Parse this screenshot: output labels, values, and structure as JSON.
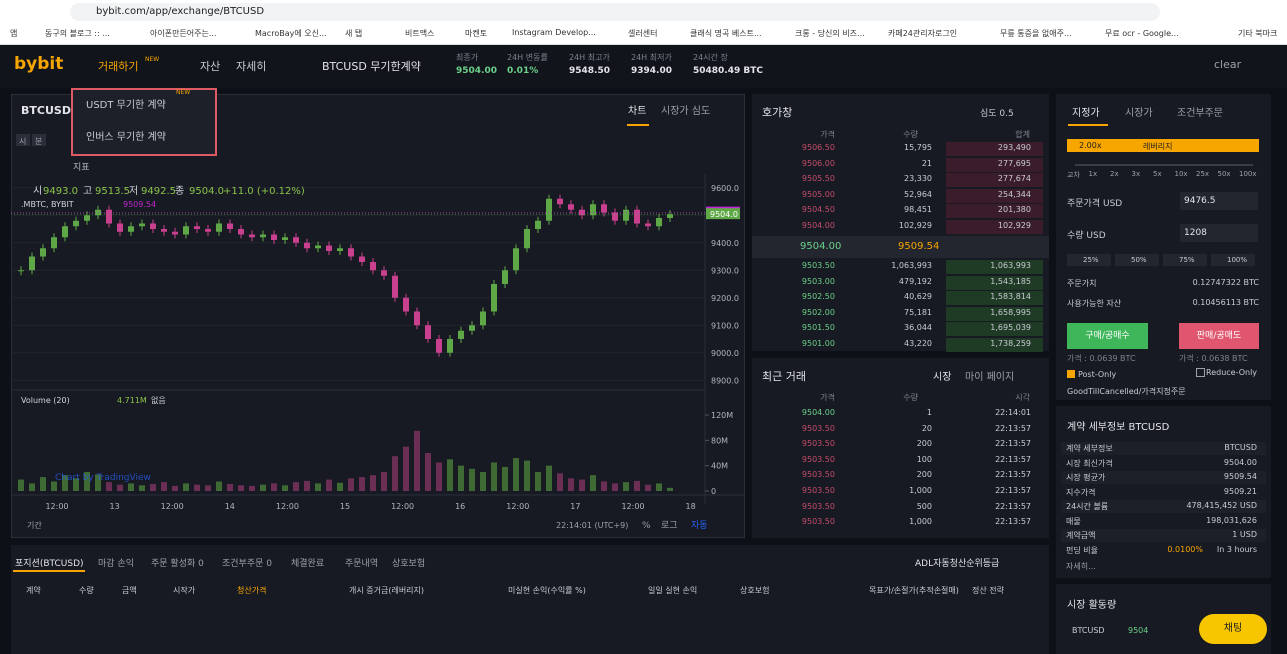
{
  "browser": {
    "url": "bybit.com/app/exchange/BTCUSD",
    "bookmarks": [
      "앱",
      "동구의 블로그 :: ...",
      "아이폰만든어주는...",
      "MacroBay에 오신...",
      "새 탭",
      "비트맥스",
      "마켄토",
      "Instagram Develop...",
      "셀러센터",
      "클래식 명곡 베스트...",
      "크롱 - 당신의 비즈...",
      "카페24관리자로그인",
      "무릎 통증을 없애주...",
      "무료 ocr - Google...",
      "기타 북마크"
    ]
  },
  "nav": {
    "logo": "bybit",
    "menu": [
      "거래하기",
      "자산",
      "자세히"
    ],
    "badge": "NEW",
    "contract": "BTCUSD 무기한계약",
    "user": "clear",
    "stats": [
      {
        "label": "최종가",
        "value": "9504.00"
      },
      {
        "label": "24H 변동률",
        "value": "0.01%"
      },
      {
        "label": "24H 최고가",
        "value": "9548.50"
      },
      {
        "label": "24H 최저가",
        "value": "9394.00"
      },
      {
        "label": "24시간 장",
        "value": "50480.49 BTC"
      }
    ]
  },
  "dropdown": {
    "items": [
      "USDT 무기한 계약",
      "인버스 무기한 계약"
    ],
    "badge": "NEW"
  },
  "chart_panel": {
    "title": "BTCUSD",
    "tabs": [
      "차트",
      "시장가 심도"
    ],
    "intervals": [
      "시",
      "분"
    ],
    "indicator": "지표",
    "ohlc": [
      "시",
      "9493.0",
      "고",
      "9513.5",
      "저",
      "9492.5",
      "종",
      "9504.0",
      "+11.0 (+0.12%)"
    ],
    "index_name": ".MBTC, BYBIT",
    "index_value": "9509.54",
    "volume_name": "Volume (20)",
    "volume_value": "4.711M",
    "volume_extra": "없음",
    "watermark": "Chart by TradingView",
    "period": "기간",
    "clock": "22:14:01 (UTC+9)",
    "options": [
      "%",
      "로그",
      "자동"
    ]
  },
  "chart_data": {
    "type": "candlestick",
    "series": [
      {
        "name": "BTCUSD",
        "up_color": "#5fa847",
        "down_color": "#c9408f",
        "values": [
          9300,
          9350,
          9380,
          9420,
          9460,
          9480,
          9500,
          9520,
          9470,
          9440,
          9460,
          9470,
          9450,
          9440,
          9430,
          9460,
          9450,
          9440,
          9470,
          9450,
          9430,
          9420,
          9430,
          9410,
          9420,
          9400,
          9380,
          9390,
          9370,
          9380,
          9350,
          9330,
          9300,
          9280,
          9200,
          9150,
          9100,
          9050,
          9000,
          9050,
          9080,
          9100,
          9150,
          9250,
          9300,
          9380,
          9450,
          9480,
          9560,
          9540,
          9520,
          9500,
          9540,
          9510,
          9480,
          9520,
          9470,
          9460,
          9490,
          9504
        ]
      },
      {
        "name": "Volume",
        "axis": "y2",
        "up_color": "#3f6a34",
        "down_color": "#6b2f55",
        "values": [
          18,
          12,
          22,
          15,
          25,
          20,
          30,
          26,
          14,
          10,
          12,
          9,
          11,
          14,
          8,
          12,
          10,
          9,
          15,
          11,
          9,
          8,
          10,
          12,
          9,
          14,
          16,
          12,
          18,
          13,
          20,
          22,
          25,
          30,
          55,
          70,
          95,
          60,
          45,
          50,
          40,
          35,
          30,
          45,
          38,
          52,
          48,
          30,
          40,
          28,
          20,
          18,
          25,
          15,
          12,
          14,
          16,
          10,
          12,
          5
        ]
      }
    ],
    "ylim": [
      8850,
      9650
    ],
    "yticks": [
      {
        "value": 8900,
        "label": "8900.0"
      },
      {
        "value": 9000,
        "label": "9000.0"
      },
      {
        "value": 9100,
        "label": "9100.0"
      },
      {
        "value": 9200,
        "label": "9200.0"
      },
      {
        "value": 9300,
        "label": "9300.0"
      },
      {
        "value": 9400,
        "label": "9400.0"
      },
      {
        "value": 9500,
        "label": "9500.0"
      },
      {
        "value": 9600,
        "label": "9600.0"
      }
    ],
    "y2lim": [
      0,
      150
    ],
    "y2ticks": [
      0,
      {
        "value": 40,
        "label": "40M"
      },
      {
        "value": 80,
        "label": "80M"
      },
      {
        "value": 120,
        "label": "120M"
      }
    ],
    "xlabels": [
      "12:00",
      "13",
      "12:00",
      "14",
      "12:00",
      "15",
      "12:00",
      "16",
      "12:00",
      "17",
      "12:00",
      "18"
    ],
    "markers": [
      {
        "value": 9509.5,
        "label": "9509.5",
        "color": "#c026d3"
      },
      {
        "value": 9504,
        "label": "9504.0",
        "color": "#5fa847"
      }
    ]
  },
  "orderbook": {
    "title": "호가창",
    "depth": "심도 0.5",
    "headers": [
      "가격",
      "수량",
      "합계"
    ],
    "asks": [
      [
        "9506.50",
        "15,795",
        "293,490"
      ],
      [
        "9506.00",
        "21",
        "277,695"
      ],
      [
        "9505.50",
        "23,330",
        "277,674"
      ],
      [
        "9505.00",
        "52,964",
        "254,344"
      ],
      [
        "9504.50",
        "98,451",
        "201,380"
      ],
      [
        "9504.00",
        "102,929",
        "102,929"
      ]
    ],
    "last": "9504.00",
    "mark": "9509.54",
    "bids": [
      [
        "9503.50",
        "1,063,993",
        "1,063,993"
      ],
      [
        "9503.00",
        "479,192",
        "1,543,185"
      ],
      [
        "9502.50",
        "40,629",
        "1,583,814"
      ],
      [
        "9502.00",
        "75,181",
        "1,658,995"
      ],
      [
        "9501.50",
        "36,044",
        "1,695,039"
      ],
      [
        "9501.00",
        "43,220",
        "1,738,259"
      ]
    ]
  },
  "trades": {
    "title": "최근 거래",
    "tabs": [
      "시장",
      "마이 페이지"
    ],
    "headers": [
      "가격",
      "수량",
      "시각"
    ],
    "rows": [
      [
        "9504.00",
        "1",
        "22:14:01"
      ],
      [
        "9503.50",
        "20",
        "22:13:57"
      ],
      [
        "9503.50",
        "200",
        "22:13:57"
      ],
      [
        "9503.50",
        "100",
        "22:13:57"
      ],
      [
        "9503.50",
        "200",
        "22:13:57"
      ],
      [
        "9503.50",
        "1,000",
        "22:13:57"
      ],
      [
        "9503.50",
        "500",
        "22:13:57"
      ],
      [
        "9503.50",
        "1,000",
        "22:13:57"
      ]
    ]
  },
  "order_form": {
    "tabs": [
      "지정가",
      "시장가",
      "조건부주문"
    ],
    "leverage": "2.00x",
    "leverage_label": "레버리지",
    "lev_steps": [
      "교차",
      "1x",
      "2x",
      "3x",
      "5x",
      "10x",
      "25x",
      "50x",
      "100x"
    ],
    "price_label": "주문가격 USD",
    "price": "9476.5",
    "qty_label": "수량 USD",
    "qty": "1208",
    "percents": [
      "25%",
      "50%",
      "75%",
      "100%"
    ],
    "rows": [
      [
        "주문가치",
        "0.12747322 BTC"
      ],
      [
        "사용가능한 자산",
        "0.10456113 BTC"
      ]
    ],
    "buy": "구매/공매수",
    "sell": "판매/공매도",
    "buy_cost": "가격 : 0.0639 BTC",
    "sell_cost": "가격 : 0.0638 BTC",
    "post_only": "Post-Only",
    "reduce_only": "Reduce-Only",
    "tif": "GoodTillCancelled/가격지정주문"
  },
  "contract": {
    "title": "계약 세부정보 BTCUSD",
    "rows": [
      [
        "계약 세부정보",
        "BTCUSD"
      ],
      [
        "시장 최신가격",
        "9504.00"
      ],
      [
        "시장 평균가",
        "9509.54"
      ],
      [
        "지수가격",
        "9509.21"
      ],
      [
        "24시간 볼륨",
        "478,415,452 USD"
      ],
      [
        "매물",
        "198,031,626"
      ],
      [
        "계약금액",
        "1 USD"
      ],
      [
        "펀딩 비율",
        "In 3 hours"
      ]
    ],
    "funding_rate": "0.0100%",
    "more": "자세히..."
  },
  "activity": {
    "title": "시장 활동량",
    "symbol": "BTCUSD",
    "price": "9504",
    "chat": "채팅"
  },
  "positions": {
    "tabs": [
      "포지션(BTCUSD)",
      "마감 손익",
      "주문 활성화 0",
      "조건부주문 0",
      "체결완료",
      "주문내역",
      "상호보험"
    ],
    "adl": "ADL자동청산순위등급",
    "columns": [
      "계약",
      "수량",
      "금액",
      "시작가",
      "청산가격",
      "개시 증거금(레버리지)",
      "미실현 손익(수익률 %)",
      "일일 실현 손익",
      "상호보험",
      "목표가/손절가(추적손절매)",
      "정산 전략"
    ]
  }
}
